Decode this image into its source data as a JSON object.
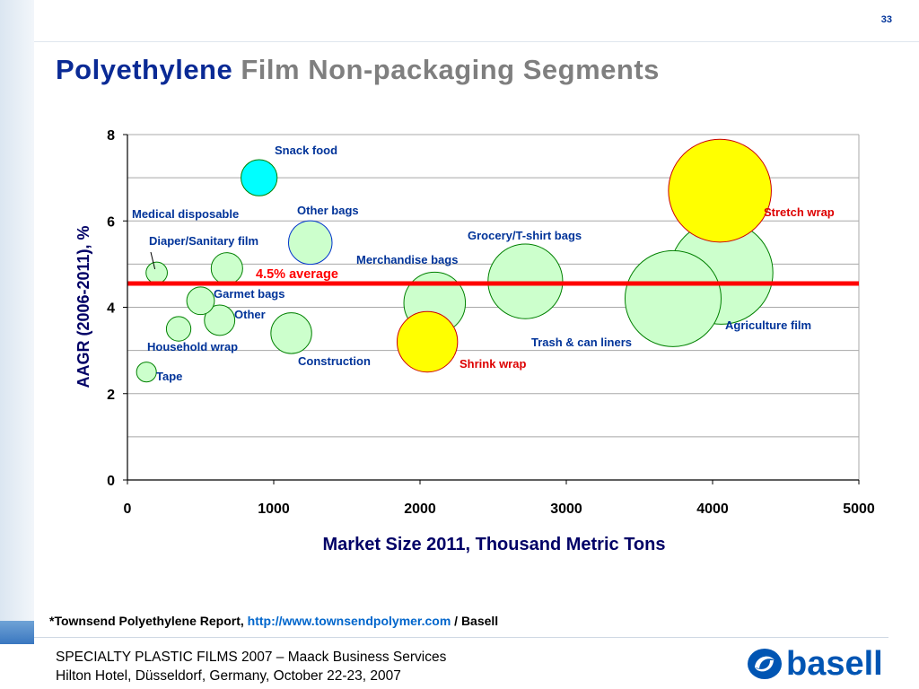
{
  "page_number": "33",
  "title": {
    "main": "Polyethylene",
    "rest": "Film Non-packaging Segments"
  },
  "source": {
    "prefix": "*Townsend Polyethylene Report, ",
    "url": "http://www.townsendpolymer.com",
    "suffix": " / Basell"
  },
  "footer": {
    "line1": "SPECIALTY PLASTIC FILMS 2007 – Maack Business Services",
    "line2": "Hilton Hotel, Düsseldorf, Germany, October 22-23, 2007"
  },
  "logo": {
    "text": "basell",
    "icon": "basell-swirl-icon",
    "color": "#0055b3"
  },
  "chart_data": {
    "type": "scatter",
    "subtype": "bubble",
    "xlabel": "Market Size 2011, Thousand Metric Tons",
    "ylabel": "AAGR (2006-2011), %",
    "xlim": [
      0,
      5000
    ],
    "ylim": [
      0,
      8
    ],
    "xticks": [
      "0",
      "1000",
      "2000",
      "3000",
      "4000",
      "5000"
    ],
    "yticks": [
      "0",
      "2",
      "4",
      "6",
      "8"
    ],
    "grid": "horizontal",
    "reference_line": {
      "y": 4.55,
      "label": "4.5% average",
      "color": "#ff0000"
    },
    "colors": {
      "default_fill": "#ccffcc",
      "default_stroke": "#008000",
      "label": "#003399",
      "highlight_label": "#dd0000"
    },
    "series": [
      {
        "label": "Tape",
        "x": 130,
        "y": 2.5,
        "size": 130,
        "fill": "#ccffcc",
        "stroke": "#008000",
        "label_color": "#003399"
      },
      {
        "label": "Household wrap",
        "x": 350,
        "y": 3.5,
        "size": 350,
        "fill": "#ccffcc",
        "stroke": "#008000",
        "label_color": "#003399"
      },
      {
        "label": "Medical disposable",
        "x": 200,
        "y": 4.8,
        "size": 200,
        "fill": "#ccffcc",
        "stroke": "#008000",
        "label_color": "#003399"
      },
      {
        "label": "Garmet bags",
        "x": 500,
        "y": 4.15,
        "size": 500,
        "fill": "#ccffcc",
        "stroke": "#008000",
        "label_color": "#003399"
      },
      {
        "label": "Diaper/Sanitary film",
        "x": 680,
        "y": 4.9,
        "size": 680,
        "fill": "#ccffcc",
        "stroke": "#008000",
        "label_color": "#003399"
      },
      {
        "label": "Other",
        "x": 630,
        "y": 3.7,
        "size": 630,
        "fill": "#ccffcc",
        "stroke": "#008000",
        "label_color": "#003399"
      },
      {
        "label": "Snack food",
        "x": 900,
        "y": 7.0,
        "size": 900,
        "fill": "#00ffff",
        "stroke": "#008000",
        "label_color": "#003399"
      },
      {
        "label": "Construction",
        "x": 1120,
        "y": 3.4,
        "size": 1120,
        "fill": "#ccffcc",
        "stroke": "#008000",
        "label_color": "#003399"
      },
      {
        "label": "Other bags",
        "x": 1250,
        "y": 5.5,
        "size": 1250,
        "fill": "#ccffcc",
        "stroke": "#0033cc",
        "label_color": "#003399"
      },
      {
        "label": "Shrink wrap",
        "x": 2050,
        "y": 3.2,
        "size": 2050,
        "fill": "#ffff00",
        "stroke": "#cc0000",
        "label_color": "#dd0000"
      },
      {
        "label": "Merchandise bags",
        "x": 2100,
        "y": 4.1,
        "size": 2100,
        "fill": "#ccffcc",
        "stroke": "#008000",
        "label_color": "#003399"
      },
      {
        "label": "Grocery/T-shirt bags",
        "x": 2720,
        "y": 4.6,
        "size": 2720,
        "fill": "#ccffcc",
        "stroke": "#008000",
        "label_color": "#003399"
      },
      {
        "label": "Trash & can liners",
        "x": 3730,
        "y": 4.2,
        "size": 3730,
        "fill": "#ccffcc",
        "stroke": "#008000",
        "label_color": "#003399"
      },
      {
        "label": "Stretch wrap",
        "x": 4050,
        "y": 6.7,
        "size": 4050,
        "fill": "#ffff00",
        "stroke": "#cc0000",
        "label_color": "#dd0000"
      },
      {
        "label": "Agriculture film",
        "x": 4060,
        "y": 4.8,
        "size": 4060,
        "fill": "#ccffcc",
        "stroke": "#008000",
        "label_color": "#003399"
      }
    ]
  }
}
